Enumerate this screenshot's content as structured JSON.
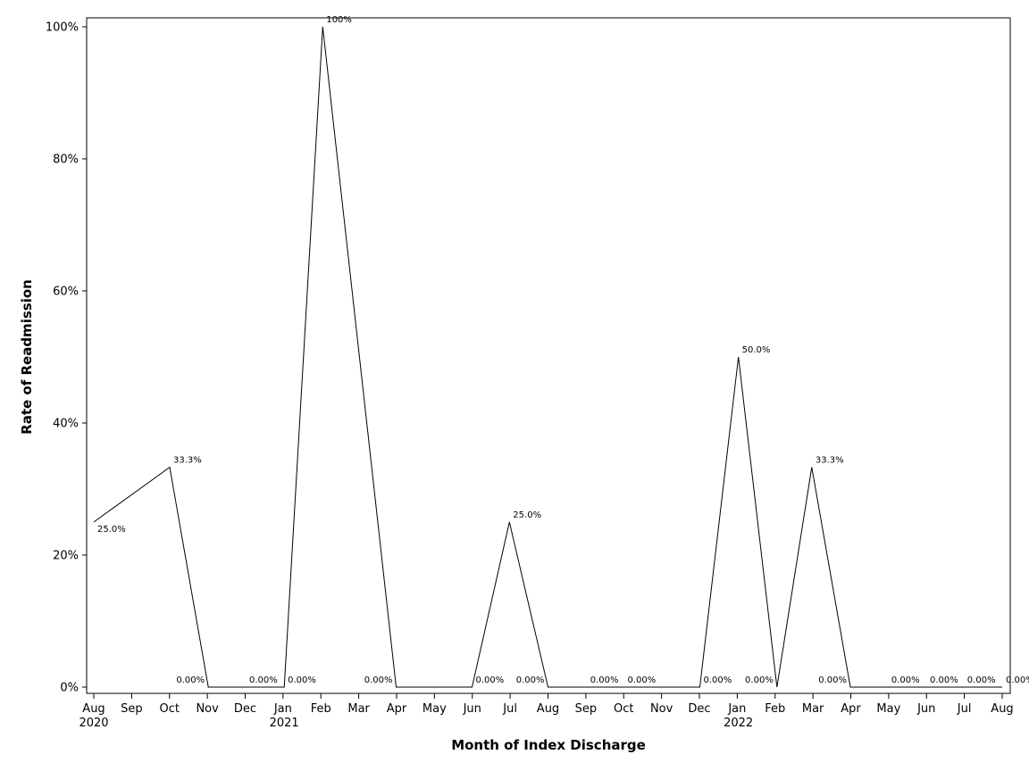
{
  "chart_data": {
    "type": "line",
    "xlabel": "Month of Index Discharge",
    "ylabel": "Rate of Readmission",
    "ylim": [
      0,
      100
    ],
    "y_unit": "%",
    "y_ticks": [
      "0%",
      "20%",
      "40%",
      "60%",
      "80%",
      "100%"
    ],
    "y_tick_values": [
      0,
      20,
      40,
      60,
      80,
      100
    ],
    "grid": false,
    "x_tick_labels": [
      "Aug",
      "Sep",
      "Oct",
      "Nov",
      "Dec",
      "Jan",
      "Feb",
      "Mar",
      "Apr",
      "May",
      "Jun",
      "Jul",
      "Aug",
      "Sep",
      "Oct",
      "Nov",
      "Dec",
      "Jan",
      "Feb",
      "Mar",
      "Apr",
      "May",
      "Jun",
      "Jul",
      "Aug"
    ],
    "x_year_labels": [
      {
        "month": "2020-08",
        "label": "2020"
      },
      {
        "month": "2021-01",
        "label": "2021"
      },
      {
        "month": "2022-01",
        "label": "2022"
      }
    ],
    "x": [
      "2020-08",
      "2020-10",
      "2020-11",
      "2020-12",
      "2021-01",
      "2021-02",
      "2021-04",
      "2021-06",
      "2021-07",
      "2021-08",
      "2021-09",
      "2021-10",
      "2021-12",
      "2022-01",
      "2022-02",
      "2022-03",
      "2022-04",
      "2022-05",
      "2022-06",
      "2022-07",
      "2022-08"
    ],
    "values": [
      25.0,
      33.3,
      0,
      0,
      0,
      100,
      0,
      0,
      25.0,
      0,
      0,
      0,
      0,
      50.0,
      0,
      33.3,
      0,
      0,
      0,
      0,
      0
    ],
    "data_labels": [
      "25.0%",
      "33.3%",
      "0.00%",
      "0.00%",
      "0.00%",
      "100%",
      "0.00%",
      "0.00%",
      "25.0%",
      "0.00%",
      "0.00%",
      "0.00%",
      "0.00%",
      "50.0%",
      "0.00%",
      "33.3%",
      "0.00%",
      "0.00%",
      "0.00%",
      "0.00%",
      "0.00%"
    ],
    "line_color": "#000000"
  }
}
